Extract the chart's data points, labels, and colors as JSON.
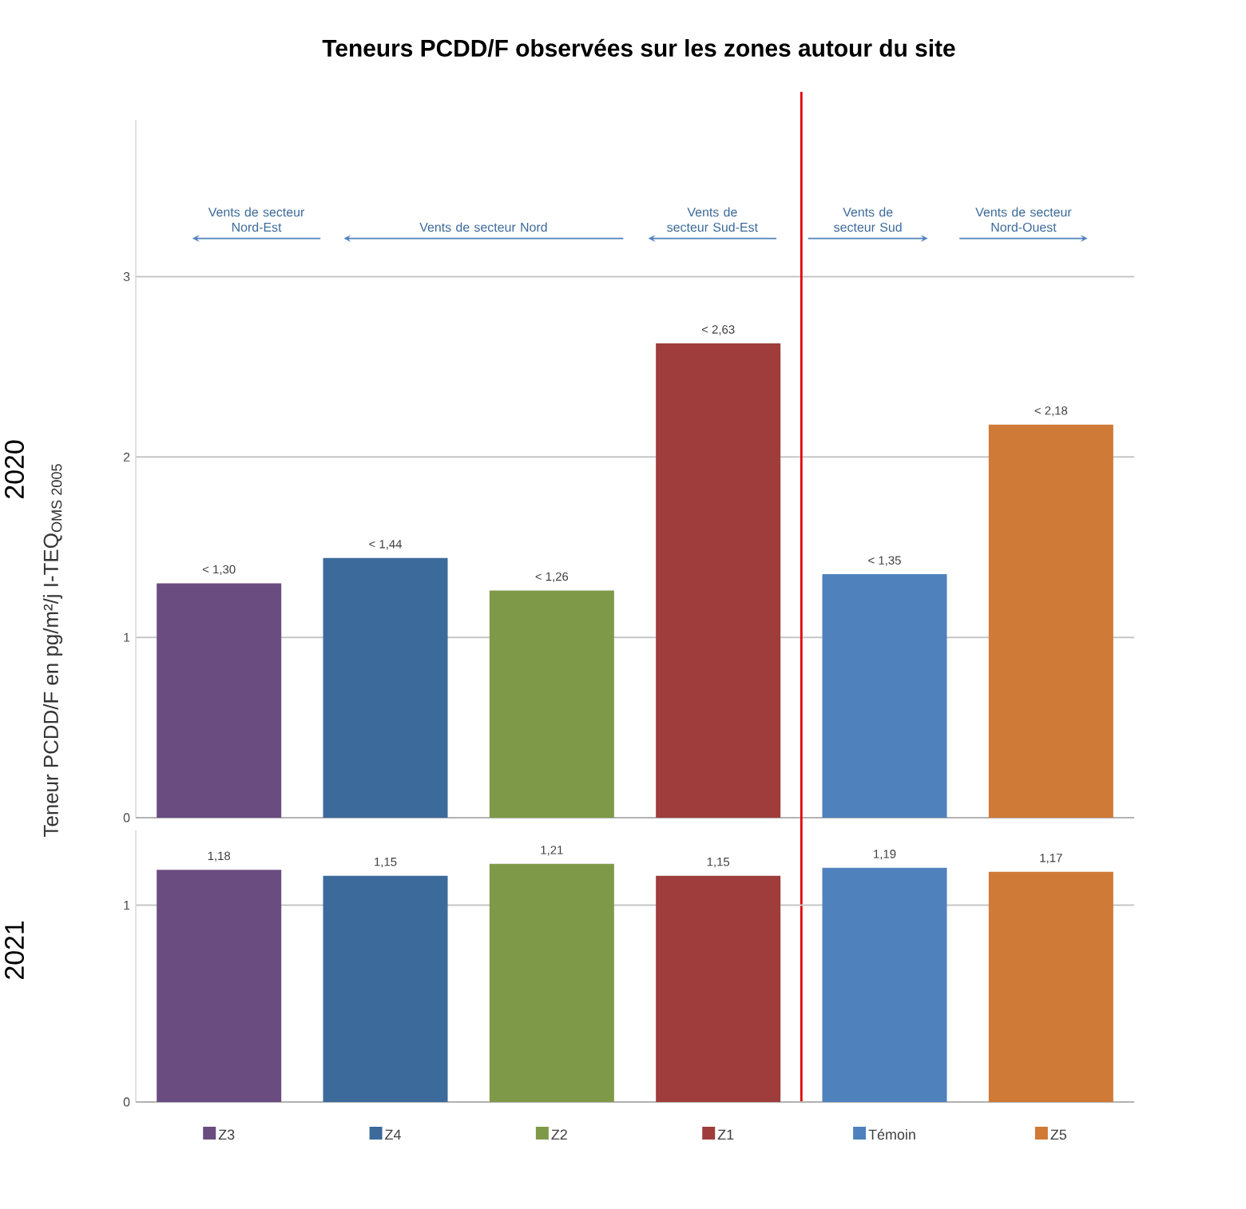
{
  "chart_data": [
    {
      "type": "bar",
      "title": "Teneurs PCDD/F observées sur les zones autour du site",
      "subtitle": "2020",
      "ylabel": "Teneur PCDD/F en pg/m²/j I-TEQ$_{OMS 2005}$",
      "categories": [
        null,
        null,
        null,
        null,
        null,
        null
      ],
      "colors": [
        "#6a4c80",
        "#3c6a9a",
        "#7e9a48",
        "#9e3d3c",
        "#4f81bd",
        "#cf7a37"
      ],
      "values": [
        1.3,
        1.44,
        1.26,
        2.63,
        1.35,
        2.18
      ],
      "value_labels": [
        "< 1,30",
        "< 1,44",
        "< 1,26",
        "< 2,63",
        "< 1,35",
        "< 2,18"
      ],
      "ylim": [
        0,
        3.87
      ],
      "yticks": [
        0,
        1,
        2,
        3
      ],
      "grid": "y",
      "tick_labels": "y",
      "annotations": [
        "Vents de secteur Nord-Est",
        "Vents de secteur Nord",
        "Vents de secteur Sud-Est",
        "Vents de secteur Sud",
        "Vents de secteur Nord-Ouest"
      ]
    },
    {
      "type": "bar",
      "subtitle": "2021",
      "categories": [
        "Z3",
        "Z4",
        "Z2",
        "Z1",
        "Témoin",
        "Z5"
      ],
      "colors": [
        "#6a4c80",
        "#3c6a9a",
        "#7e9a48",
        "#9e3d3c",
        "#4f81bd",
        "#cf7a37"
      ],
      "values": [
        1.18,
        1.15,
        1.21,
        1.15,
        1.19,
        1.17
      ],
      "value_labels": [
        "1,18",
        "1,15",
        "1,21",
        "1,15",
        "1,19",
        "1,17"
      ],
      "ylim": [
        0,
        1.38
      ],
      "yticks": [
        0,
        1
      ],
      "grid": "y"
    }
  ]
}
